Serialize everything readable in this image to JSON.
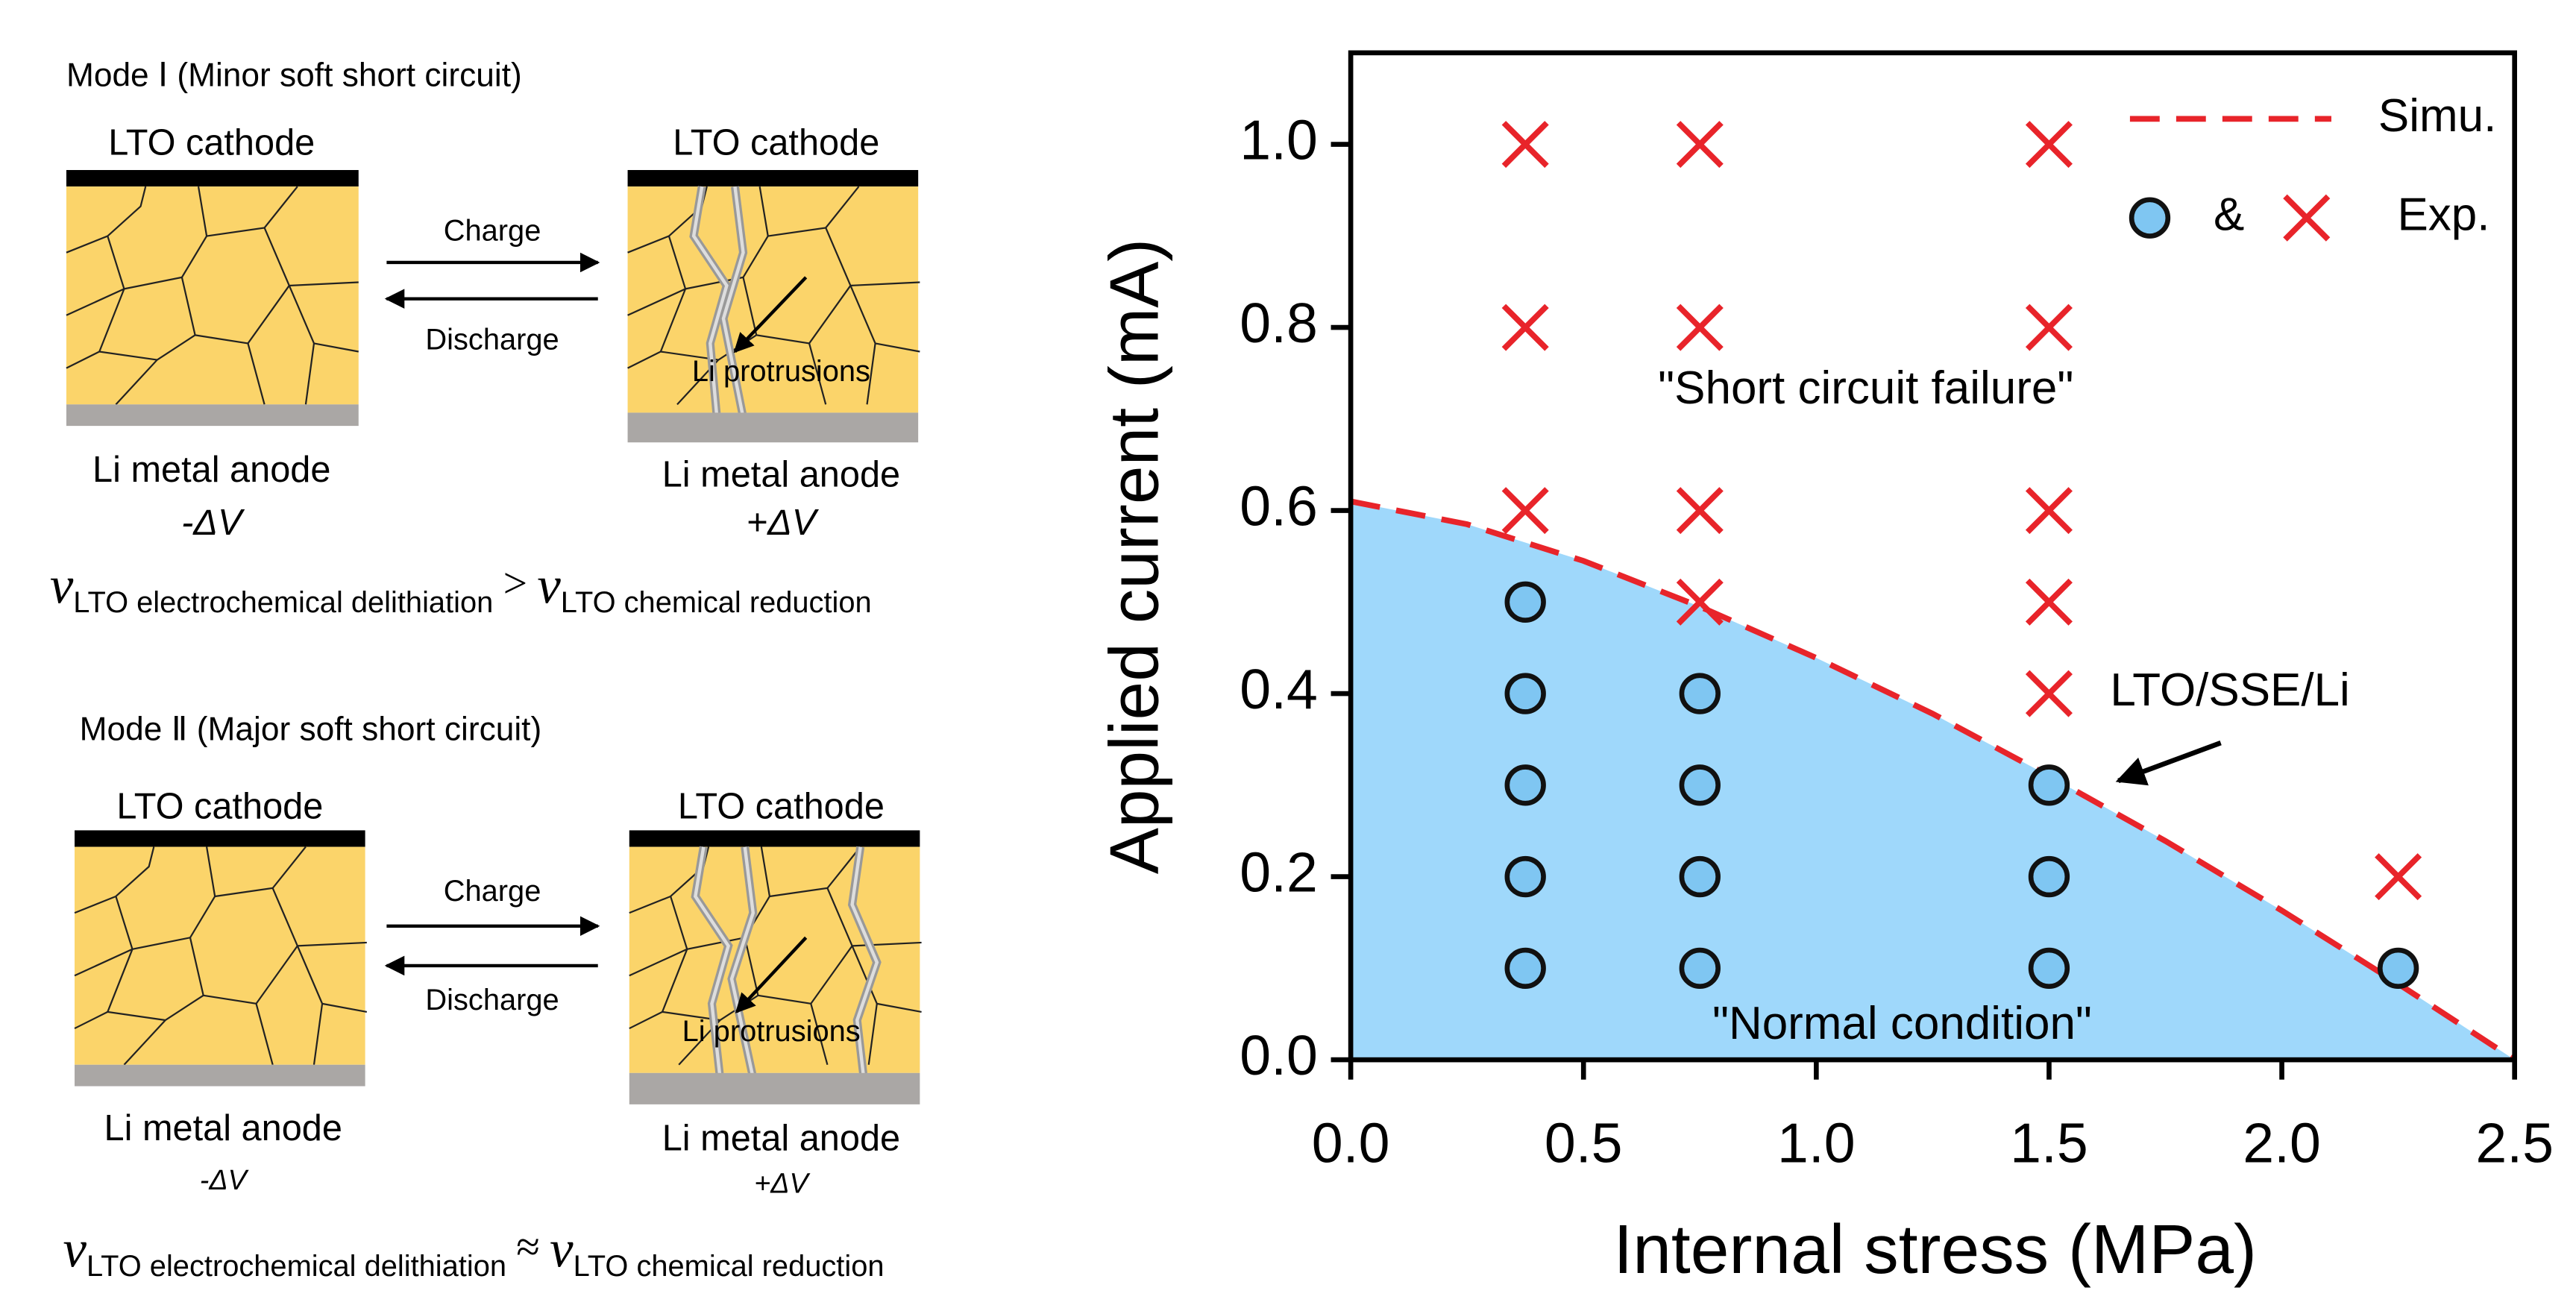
{
  "diagram": {
    "mode1": {
      "title": "Mode Ⅰ (Minor soft short circuit)",
      "cathode_left": "LTO cathode",
      "cathode_right": "LTO cathode",
      "charge": "Charge",
      "discharge": "Discharge",
      "protrusions": "Li protrusions",
      "anode_left": "Li metal anode",
      "anode_right": "Li metal anode",
      "dv_left": "-ΔV",
      "dv_right": "+ΔV",
      "eq": {
        "v1": "v",
        "sub1": "LTO electrochemical delithiation",
        "op": ">",
        "v2": "v",
        "sub2": "LTO chemical reduction"
      }
    },
    "mode2": {
      "title": "Mode Ⅱ (Major soft short circuit)",
      "cathode_left": "LTO cathode",
      "cathode_right": "LTO cathode",
      "charge": "Charge",
      "discharge": "Discharge",
      "protrusions": "Li protrusions",
      "anode_left": "Li metal anode",
      "anode_right": "Li metal anode",
      "dv_left": "-ΔV",
      "dv_right": "+ΔV",
      "eq": {
        "v1": "v",
        "sub1": "LTO electrochemical delithiation",
        "op": "≈",
        "v2": "v",
        "sub2": "LTO chemical reduction"
      }
    }
  },
  "chart_data": {
    "type": "scatter",
    "xlabel": "Internal stress (MPa)",
    "ylabel": "Applied current (mA)",
    "xlim": [
      0,
      2.5
    ],
    "ylim": [
      0,
      1.1
    ],
    "xticks": [
      {
        "value": 0,
        "label": "0.0"
      },
      0.5,
      {
        "value": 1,
        "label": "1.0"
      },
      1.5,
      {
        "value": 2,
        "label": "2.0"
      },
      2.5
    ],
    "yticks": [
      {
        "value": 0,
        "label": "0.0"
      },
      0.2,
      0.4,
      0.6,
      0.8,
      {
        "value": 1,
        "label": "1.0"
      }
    ],
    "legend_joiner": "&",
    "series": [
      {
        "name": "Simu.",
        "kind": "line",
        "color": "#e8242a",
        "area_color": "#9fd8fb",
        "x": [
          0,
          0.25,
          0.5,
          0.75,
          1.0,
          1.25,
          1.5,
          1.75,
          2.0,
          2.25,
          2.5
        ],
        "y": [
          0.61,
          0.585,
          0.545,
          0.495,
          0.439,
          0.378,
          0.31,
          0.239,
          0.163,
          0.083,
          0
        ]
      },
      {
        "name": "Exp.",
        "kind": "circle",
        "color": "#7fc6f2",
        "x": [
          0.375,
          0.375,
          0.375,
          0.375,
          0.375,
          0.75,
          0.75,
          0.75,
          0.75,
          1.5,
          1.5,
          1.5,
          2.25
        ],
        "y": [
          0.1,
          0.2,
          0.3,
          0.4,
          0.5,
          0.1,
          0.2,
          0.3,
          0.4,
          0.1,
          0.2,
          0.3,
          0.1
        ]
      },
      {
        "kind": "cross",
        "color": "#e8242a",
        "x": [
          0.375,
          0.375,
          0.375,
          0.75,
          0.75,
          0.75,
          0.75,
          1.5,
          1.5,
          1.5,
          1.5,
          1.5,
          2.25
        ],
        "y": [
          1.0,
          0.8,
          0.6,
          1.0,
          0.8,
          0.6,
          0.5,
          1.0,
          0.8,
          0.6,
          0.5,
          0.4,
          0.2
        ]
      }
    ],
    "annotations": {
      "failure": "\"Short circuit failure\"",
      "normal": "\"Normal condition\"",
      "cell": "LTO/SSE/Li"
    }
  }
}
